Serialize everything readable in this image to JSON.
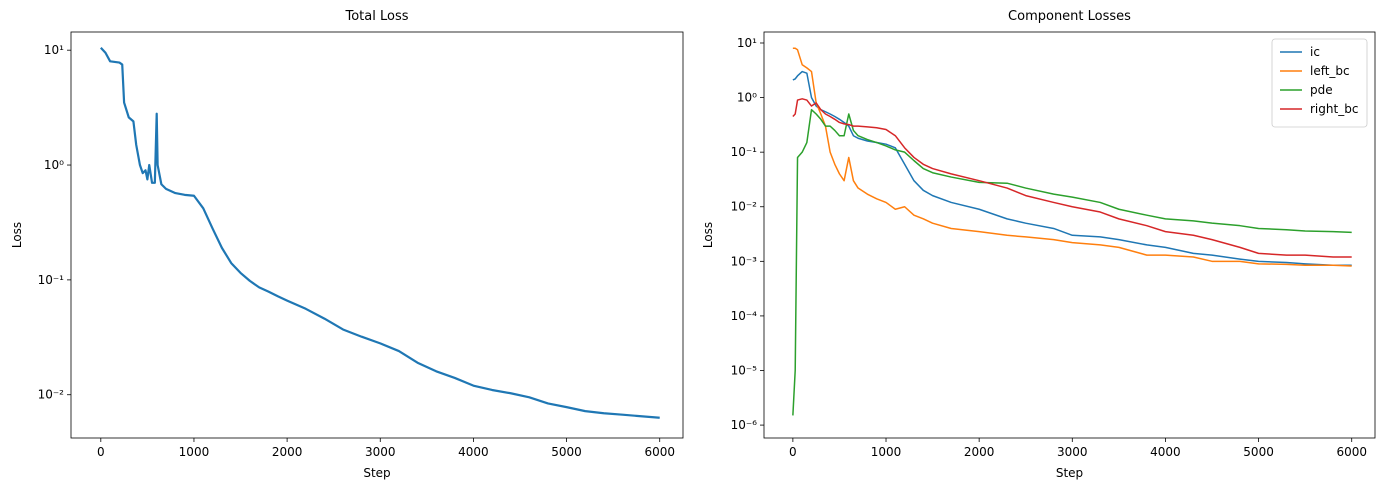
{
  "chart_data": [
    {
      "type": "line",
      "title": "Total Loss",
      "x_label": "Step",
      "y_label": "Loss",
      "log_y": true,
      "color": "#1f77b4",
      "x": [
        0,
        50,
        100,
        200,
        230,
        250,
        300,
        350,
        380,
        420,
        450,
        480,
        500,
        520,
        550,
        580,
        600,
        610,
        650,
        700,
        800,
        900,
        1000,
        1100,
        1200,
        1300,
        1400,
        1500,
        1600,
        1700,
        1800,
        1900,
        2000,
        2200,
        2400,
        2600,
        2800,
        3000,
        3200,
        3400,
        3600,
        3800,
        4000,
        4200,
        4400,
        4600,
        4800,
        5000,
        5200,
        5400,
        5600,
        5800,
        6000
      ],
      "values": [
        10.5,
        9.5,
        8,
        7.8,
        7.5,
        3.5,
        2.6,
        2.4,
        1.5,
        1.0,
        0.85,
        0.9,
        0.75,
        1.0,
        0.7,
        0.7,
        2.8,
        1.0,
        0.68,
        0.62,
        0.57,
        0.55,
        0.54,
        0.42,
        0.28,
        0.19,
        0.14,
        0.115,
        0.098,
        0.086,
        0.079,
        0.072,
        0.066,
        0.056,
        0.046,
        0.037,
        0.032,
        0.028,
        0.024,
        0.019,
        0.016,
        0.014,
        0.012,
        0.011,
        0.0103,
        0.0095,
        0.0084,
        0.0078,
        0.0072,
        0.0069,
        0.0067,
        0.0065,
        0.0063
      ],
      "xlim": [
        -320,
        6250
      ],
      "ylim": [
        0.0042,
        14.4
      ],
      "xticks": [
        0,
        1000,
        2000,
        3000,
        4000,
        5000,
        6000
      ],
      "yticks": [
        {
          "value": 0.01,
          "label": "10⁻²"
        },
        {
          "value": 0.1,
          "label": "10⁻¹"
        },
        {
          "value": 1,
          "label": "10⁰"
        },
        {
          "value": 10,
          "label": "10¹"
        }
      ]
    },
    {
      "type": "line",
      "title": "Component Losses",
      "x_label": "Step",
      "y_label": "Loss",
      "log_y": true,
      "legend": "upper right",
      "x": [
        0,
        25,
        50,
        100,
        150,
        200,
        250,
        300,
        350,
        400,
        450,
        500,
        550,
        600,
        650,
        700,
        800,
        900,
        1000,
        1100,
        1200,
        1300,
        1400,
        1500,
        1700,
        2000,
        2300,
        2500,
        2800,
        3000,
        3300,
        3500,
        3800,
        4000,
        4300,
        4500,
        4800,
        5000,
        5300,
        5500,
        5800,
        6000
      ],
      "series": [
        {
          "name": "ic",
          "color": "#1f77b4",
          "values": [
            2.1,
            2.2,
            2.5,
            3.0,
            2.8,
            1.0,
            0.7,
            0.6,
            0.55,
            0.5,
            0.45,
            0.4,
            0.35,
            0.3,
            0.2,
            0.18,
            0.16,
            0.15,
            0.14,
            0.12,
            0.06,
            0.03,
            0.02,
            0.016,
            0.012,
            0.009,
            0.006,
            0.005,
            0.004,
            0.003,
            0.0028,
            0.0025,
            0.002,
            0.0018,
            0.0014,
            0.0013,
            0.0011,
            0.001,
            0.00095,
            0.0009,
            0.00085,
            0.00085
          ]
        },
        {
          "name": "left_bc",
          "color": "#ff7f0e",
          "values": [
            8,
            8,
            7.5,
            4,
            3.5,
            3.0,
            0.8,
            0.5,
            0.3,
            0.1,
            0.06,
            0.04,
            0.03,
            0.08,
            0.03,
            0.022,
            0.017,
            0.014,
            0.012,
            0.009,
            0.01,
            0.007,
            0.006,
            0.005,
            0.004,
            0.0035,
            0.003,
            0.0028,
            0.0025,
            0.0022,
            0.002,
            0.0018,
            0.0013,
            0.0013,
            0.0012,
            0.001,
            0.001,
            0.0009,
            0.00088,
            0.00085,
            0.00085,
            0.00082
          ]
        },
        {
          "name": "pde",
          "color": "#2ca02c",
          "values": [
            1.5e-06,
            1e-05,
            0.08,
            0.1,
            0.15,
            0.6,
            0.5,
            0.4,
            0.3,
            0.3,
            0.25,
            0.2,
            0.2,
            0.5,
            0.25,
            0.2,
            0.17,
            0.15,
            0.13,
            0.11,
            0.1,
            0.07,
            0.05,
            0.042,
            0.035,
            0.028,
            0.027,
            0.022,
            0.017,
            0.015,
            0.012,
            0.009,
            0.007,
            0.006,
            0.0055,
            0.005,
            0.0045,
            0.004,
            0.0038,
            0.0036,
            0.0035,
            0.0034
          ]
        },
        {
          "name": "right_bc",
          "color": "#d62728",
          "values": [
            0.45,
            0.5,
            0.9,
            0.95,
            0.9,
            0.7,
            0.8,
            0.6,
            0.5,
            0.45,
            0.4,
            0.35,
            0.33,
            0.32,
            0.3,
            0.3,
            0.29,
            0.28,
            0.26,
            0.2,
            0.12,
            0.08,
            0.06,
            0.05,
            0.04,
            0.03,
            0.022,
            0.016,
            0.012,
            0.01,
            0.008,
            0.006,
            0.0045,
            0.0035,
            0.003,
            0.0025,
            0.0018,
            0.0014,
            0.0013,
            0.0013,
            0.0012,
            0.0012
          ]
        }
      ],
      "xlim": [
        -310,
        6250
      ],
      "ylim": [
        5.8e-07,
        15.9
      ],
      "xticks": [
        0,
        1000,
        2000,
        3000,
        4000,
        5000,
        6000
      ],
      "yticks": [
        {
          "value": 1e-06,
          "label": "10⁻⁶"
        },
        {
          "value": 1e-05,
          "label": "10⁻⁵"
        },
        {
          "value": 0.0001,
          "label": "10⁻⁴"
        },
        {
          "value": 0.001,
          "label": "10⁻³"
        },
        {
          "value": 0.01,
          "label": "10⁻²"
        },
        {
          "value": 0.1,
          "label": "10⁻¹"
        },
        {
          "value": 1,
          "label": "10⁰"
        },
        {
          "value": 10,
          "label": "10¹"
        }
      ]
    }
  ]
}
